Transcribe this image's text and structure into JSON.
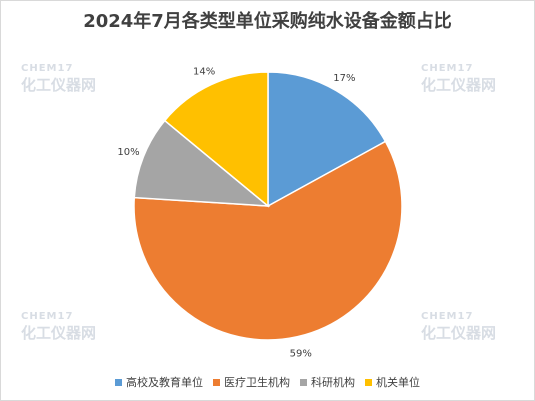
{
  "chart_data": {
    "type": "pie",
    "title": "2024年7月各类型单位采购纯水设备金额占比",
    "categories": [
      "高校及教育单位",
      "医疗卫生机构",
      "科研机构",
      "机关单位"
    ],
    "values": [
      17,
      59,
      10,
      14
    ],
    "labels": [
      "17%",
      "59%",
      "10%",
      "14%"
    ],
    "colors": [
      "#5b9bd5",
      "#ed7d31",
      "#a5a5a5",
      "#ffc000"
    ],
    "legend": "bottom"
  },
  "watermark": {
    "en": "CHEM17",
    "cn": "化工仪器网"
  }
}
